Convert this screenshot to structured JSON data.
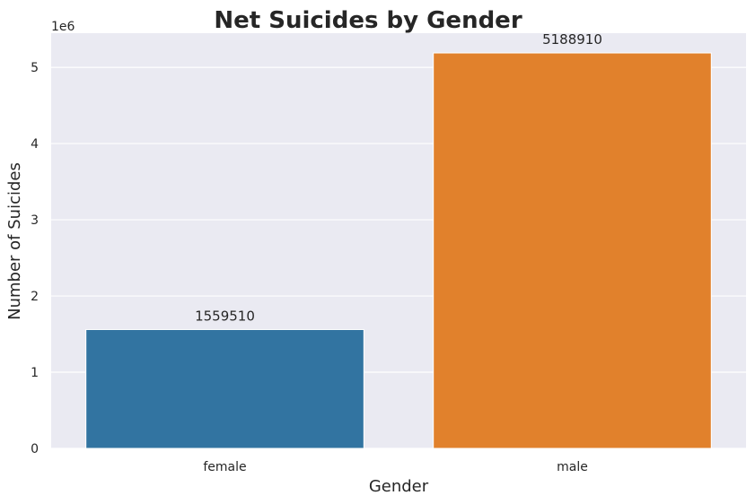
{
  "chart_data": {
    "type": "bar",
    "title": "Net Suicides by Gender",
    "xlabel": "Gender",
    "ylabel": "Number of Suicides",
    "y_offset_label": "1e6",
    "categories": [
      "female",
      "male"
    ],
    "values": [
      1559510,
      5188910
    ],
    "data_labels": [
      "1559510",
      "5188910"
    ],
    "colors": [
      "#3274a1",
      "#e1812c"
    ],
    "ylim": [
      0,
      5448355
    ],
    "yticks": [
      0,
      1000000,
      2000000,
      3000000,
      4000000,
      5000000
    ],
    "ytick_labels": [
      "0",
      "1",
      "2",
      "3",
      "4",
      "5"
    ],
    "grid": true,
    "background": "#eaeaf2"
  }
}
